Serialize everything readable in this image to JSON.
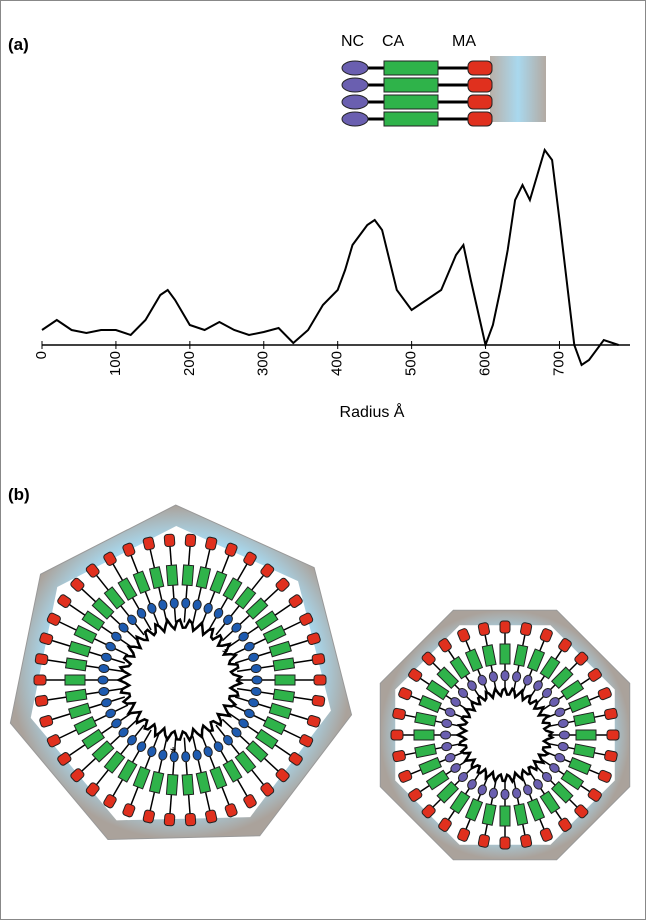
{
  "labels": {
    "panel_a": "(a)",
    "panel_b": "(b)"
  },
  "schematic": {
    "domains": [
      "NC",
      "CA",
      "MA"
    ]
  },
  "diagram": {
    "markers": [
      "*",
      "*"
    ]
  },
  "chart_data": {
    "type": "line",
    "xlabel": "Radius Å",
    "color": "#000000",
    "x": [
      0,
      20,
      40,
      60,
      80,
      100,
      120,
      140,
      160,
      170,
      180,
      200,
      220,
      240,
      260,
      280,
      300,
      320,
      340,
      360,
      380,
      400,
      410,
      420,
      440,
      450,
      460,
      480,
      500,
      520,
      540,
      560,
      570,
      580,
      600,
      610,
      620,
      630,
      640,
      650,
      660,
      670,
      680,
      690,
      700,
      720,
      730,
      740,
      760,
      780
    ],
    "values": [
      1.5,
      2.5,
      1.5,
      1.2,
      1.5,
      1.5,
      1,
      2.5,
      5,
      5.5,
      4.5,
      2,
      1.5,
      2.3,
      1.5,
      1,
      1.3,
      1.7,
      0.2,
      1.5,
      4,
      5.5,
      7.5,
      10,
      12,
      12.5,
      11.5,
      5.5,
      3.5,
      4.5,
      5.5,
      9,
      10,
      6.5,
      0,
      2,
      5.5,
      9.5,
      14.5,
      16,
      14.5,
      17,
      19.5,
      18.5,
      12.5,
      0,
      -2,
      -1.5,
      0.5,
      0
    ],
    "xlim": [
      0,
      790
    ],
    "ylim": [
      -8,
      21
    ],
    "xticks": [
      0,
      100,
      200,
      300,
      400,
      500,
      600,
      700
    ]
  }
}
